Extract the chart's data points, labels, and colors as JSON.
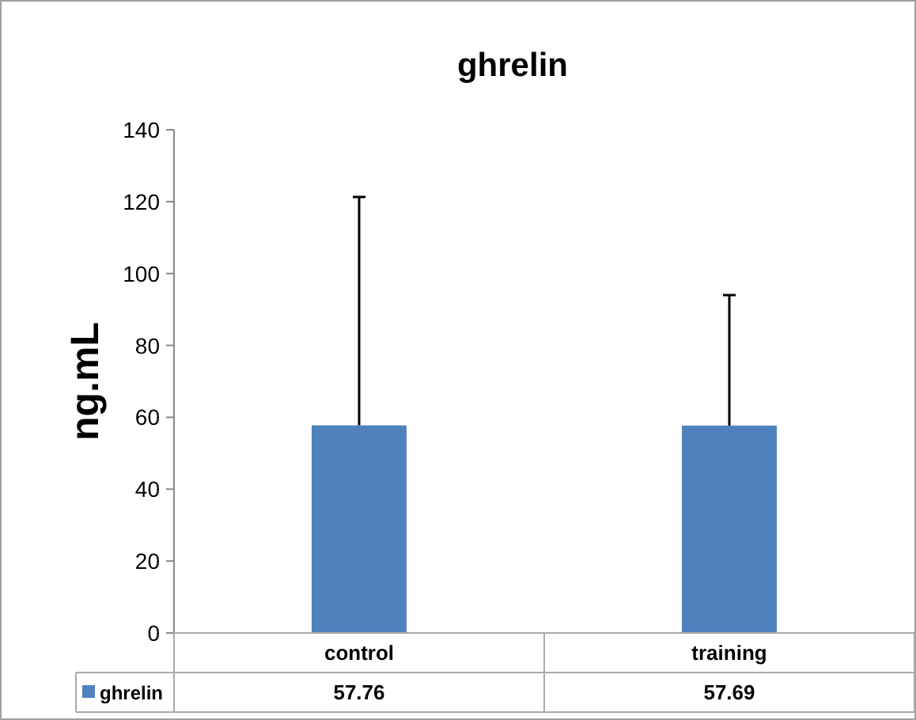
{
  "chart_data": {
    "type": "bar",
    "title": "ghrelin",
    "ylabel": "ng.mL",
    "categories": [
      "control",
      "training"
    ],
    "series": [
      {
        "name": "ghrelin",
        "color": "#4f81bd",
        "values": [
          57.76,
          57.69
        ],
        "errors": [
          [
            57.76,
            121.3
          ],
          [
            57.69,
            94
          ]
        ]
      }
    ],
    "ylim": [
      0,
      140
    ],
    "yticks": [
      0,
      20,
      40,
      60,
      80,
      100,
      120,
      140
    ],
    "grid": false,
    "data_labels": true
  }
}
